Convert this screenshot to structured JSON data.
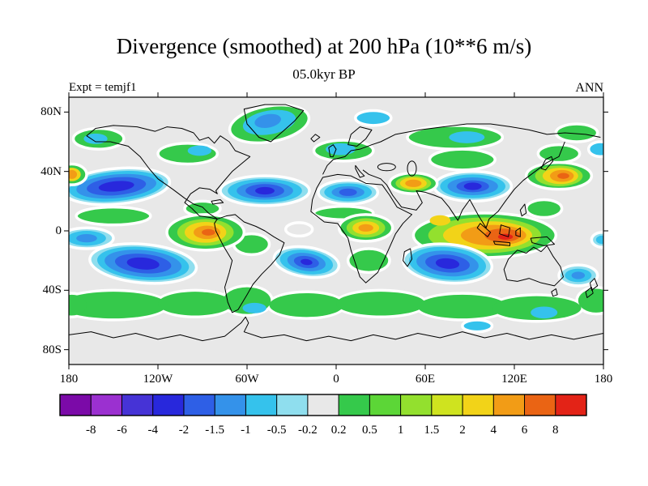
{
  "chart_data": {
    "type": "filled-contour-map",
    "title": "Divergence (smoothed) at 200 hPa (10**6 m/s)",
    "subtitle": "05.0kyr BP",
    "experiment_label": "Expt = temjf1",
    "season_label": "ANN",
    "units": "10**6 m/s",
    "projection": "equirectangular",
    "lon_range": [
      -180,
      180
    ],
    "lat_range": [
      -90,
      90
    ],
    "grid": false,
    "legend_position": "bottom-colorbar",
    "x_ticks": [
      {
        "label": "180",
        "lon": -180
      },
      {
        "label": "120W",
        "lon": -120
      },
      {
        "label": "60W",
        "lon": -60
      },
      {
        "label": "0",
        "lon": 0
      },
      {
        "label": "60E",
        "lon": 60
      },
      {
        "label": "120E",
        "lon": 120
      },
      {
        "label": "180",
        "lon": 180
      }
    ],
    "y_ticks": [
      {
        "label": "80N",
        "lat": 80
      },
      {
        "label": "40N",
        "lat": 40
      },
      {
        "label": "0",
        "lat": 0
      },
      {
        "label": "40S",
        "lat": -40
      },
      {
        "label": "80S",
        "lat": -80
      }
    ],
    "contour_levels": [
      -8,
      -6,
      -4,
      -2,
      -1.5,
      -1,
      -0.5,
      -0.2,
      0.2,
      0.5,
      1,
      1.5,
      2,
      4,
      6,
      8
    ],
    "palette": [
      "#7B0AA8",
      "#9B30D0",
      "#4633D6",
      "#2828DC",
      "#2E5FE6",
      "#3492EA",
      "#35C2EC",
      "#8FDEEE",
      "#E8E8E8",
      "#35C94B",
      "#5CD637",
      "#93E02E",
      "#CFE31F",
      "#F2D318",
      "#F29C16",
      "#EA6414",
      "#E32317"
    ],
    "neutral_color": "#E8E8E8",
    "contour_halo_color": "#FFFFFF",
    "features_format": [
      "lon",
      "lat",
      "rx_deg",
      "ry_deg",
      "rotation_deg",
      "palette_index",
      "white_halo"
    ],
    "features": [
      [
        -45,
        72,
        27,
        12,
        -10,
        9,
        1
      ],
      [
        -45,
        73,
        18,
        8,
        -10,
        6,
        0
      ],
      [
        -46,
        74,
        9,
        4.5,
        -10,
        5,
        0
      ],
      [
        -160,
        62,
        17,
        7,
        0,
        9,
        1
      ],
      [
        -162,
        62,
        8,
        3.5,
        0,
        6,
        0
      ],
      [
        80,
        63,
        32,
        8,
        0,
        9,
        1
      ],
      [
        88,
        63,
        12,
        4,
        0,
        6,
        0
      ],
      [
        162,
        66,
        14,
        6,
        0,
        9,
        1
      ],
      [
        25,
        76,
        12,
        5,
        0,
        6,
        1
      ],
      [
        5,
        54,
        20,
        7,
        0,
        9,
        1
      ],
      [
        3,
        55,
        10,
        4,
        0,
        6,
        0
      ],
      [
        -100,
        52,
        20,
        7,
        0,
        9,
        1
      ],
      [
        -92,
        54,
        8,
        3.5,
        0,
        6,
        0
      ],
      [
        85,
        48,
        22,
        7,
        0,
        9,
        1
      ],
      [
        150,
        52,
        14,
        6,
        0,
        9,
        1
      ],
      [
        178,
        55,
        8,
        5,
        0,
        6,
        1
      ],
      [
        -150,
        10,
        25,
        6,
        0,
        9,
        1
      ],
      [
        -90,
        15,
        12,
        5,
        0,
        9,
        1
      ],
      [
        5,
        12,
        20,
        4.5,
        0,
        9,
        1
      ],
      [
        140,
        15,
        12,
        6,
        0,
        9,
        1
      ],
      [
        -150,
        -50,
        36,
        9,
        0,
        9,
        2
      ],
      [
        -95,
        -49,
        25,
        8,
        0,
        9,
        2
      ],
      [
        -60,
        -47,
        16,
        9,
        0,
        9,
        2
      ],
      [
        -20,
        -50,
        25,
        8,
        0,
        9,
        2
      ],
      [
        30,
        -49,
        30,
        8,
        0,
        9,
        2
      ],
      [
        85,
        -51,
        30,
        8,
        0,
        9,
        2
      ],
      [
        135,
        -52,
        30,
        8,
        0,
        9,
        2
      ],
      [
        175,
        -47,
        12,
        8,
        0,
        9,
        2
      ],
      [
        -178,
        -50,
        10,
        7,
        0,
        9,
        2
      ],
      [
        -55,
        -52,
        8,
        3.5,
        0,
        6,
        0
      ],
      [
        140,
        -55,
        9,
        4,
        0,
        6,
        0
      ],
      [
        -57,
        -9,
        12,
        7,
        0,
        9,
        1
      ],
      [
        22,
        -20,
        14,
        8,
        0,
        9,
        1
      ],
      [
        -88,
        -1,
        26,
        12,
        0,
        9,
        1
      ],
      [
        -88,
        -1,
        19,
        9,
        0,
        11,
        0
      ],
      [
        -88,
        -1,
        14,
        7,
        0,
        13,
        0
      ],
      [
        -87,
        -1,
        9,
        4.5,
        0,
        14,
        0
      ],
      [
        -86,
        -1,
        4.5,
        2.2,
        0,
        15,
        0
      ],
      [
        20,
        2,
        18,
        9,
        0,
        9,
        1
      ],
      [
        20,
        2,
        13,
        6.5,
        0,
        11,
        0
      ],
      [
        20,
        2,
        9,
        4.5,
        0,
        13,
        0
      ],
      [
        20,
        2,
        5,
        2.5,
        0,
        14,
        0
      ],
      [
        100,
        -3,
        48,
        15,
        0,
        9,
        1
      ],
      [
        100,
        -3,
        38,
        12,
        0,
        11,
        0
      ],
      [
        102,
        -3,
        30,
        9.5,
        0,
        13,
        0
      ],
      [
        106,
        -3,
        22,
        7,
        0,
        14,
        0
      ],
      [
        112,
        -3,
        12,
        4.5,
        0,
        15,
        0
      ],
      [
        114,
        -4,
        5,
        2,
        0,
        16,
        0
      ],
      [
        70,
        7,
        7,
        3.5,
        0,
        13,
        0
      ],
      [
        -25,
        1,
        9,
        4.5,
        0,
        8,
        1
      ],
      [
        -148,
        30,
        36,
        12,
        -5,
        7,
        1
      ],
      [
        -148,
        30,
        32,
        10,
        -5,
        6,
        0
      ],
      [
        -148,
        30,
        27,
        8,
        -5,
        5,
        0
      ],
      [
        -148,
        30,
        20,
        6,
        -5,
        4,
        0
      ],
      [
        -148,
        30,
        12,
        3.5,
        -5,
        3,
        0
      ],
      [
        -48,
        27,
        30,
        10,
        0,
        7,
        1
      ],
      [
        -48,
        27,
        25,
        8,
        0,
        6,
        0
      ],
      [
        -48,
        27,
        19,
        6,
        0,
        5,
        0
      ],
      [
        -48,
        27,
        13,
        4.5,
        0,
        4,
        0
      ],
      [
        -48,
        27,
        6.5,
        2.5,
        0,
        3,
        0
      ],
      [
        8,
        26,
        20,
        8,
        0,
        7,
        1
      ],
      [
        8,
        26,
        16,
        6,
        0,
        6,
        0
      ],
      [
        8,
        26,
        11,
        4,
        0,
        5,
        0
      ],
      [
        8,
        26,
        6,
        2.5,
        0,
        4,
        0
      ],
      [
        92,
        30,
        26,
        10,
        0,
        7,
        1
      ],
      [
        92,
        30,
        22,
        8,
        0,
        6,
        0
      ],
      [
        92,
        30,
        17,
        6,
        0,
        5,
        0
      ],
      [
        92,
        30,
        11,
        4,
        0,
        4,
        0
      ],
      [
        92,
        30,
        6,
        2.5,
        0,
        3,
        0
      ],
      [
        150,
        37,
        22,
        9,
        0,
        9,
        1
      ],
      [
        150,
        37,
        16,
        7,
        0,
        11,
        0
      ],
      [
        151,
        37,
        12,
        5.5,
        0,
        13,
        0
      ],
      [
        152,
        37,
        8,
        4,
        0,
        14,
        0
      ],
      [
        153,
        37,
        4,
        2,
        0,
        15,
        0
      ],
      [
        -178,
        38,
        10,
        7,
        0,
        9,
        1
      ],
      [
        -178,
        38,
        6,
        4.5,
        0,
        13,
        0
      ],
      [
        -178,
        38,
        3.5,
        3,
        0,
        14,
        0
      ],
      [
        52,
        32,
        16,
        7,
        0,
        9,
        1
      ],
      [
        52,
        32,
        12,
        5,
        0,
        11,
        0
      ],
      [
        52,
        32,
        9,
        4,
        0,
        13,
        0
      ],
      [
        52,
        32,
        5.5,
        2.5,
        0,
        14,
        0
      ],
      [
        -168,
        -5,
        18,
        7,
        0,
        7,
        1
      ],
      [
        -168,
        -5,
        13,
        5,
        0,
        6,
        0
      ],
      [
        -168,
        -5,
        7,
        2.8,
        0,
        5,
        0
      ],
      [
        179,
        -6,
        7,
        5,
        0,
        7,
        1
      ],
      [
        179,
        -6,
        4,
        2.8,
        0,
        6,
        0
      ],
      [
        -130,
        -22,
        36,
        13,
        5,
        7,
        1
      ],
      [
        -130,
        -22,
        31,
        11,
        5,
        6,
        0
      ],
      [
        -130,
        -22,
        26,
        9,
        5,
        5,
        0
      ],
      [
        -130,
        -22,
        19,
        6.5,
        5,
        4,
        0
      ],
      [
        -130,
        -22,
        11,
        4,
        5,
        3,
        0
      ],
      [
        -20,
        -21,
        22,
        10,
        8,
        7,
        1
      ],
      [
        -20,
        -21,
        18,
        8,
        8,
        6,
        0
      ],
      [
        -20,
        -21,
        13,
        6,
        8,
        5,
        0
      ],
      [
        -20,
        -21,
        8.5,
        4,
        8,
        4,
        0
      ],
      [
        -20,
        -21,
        4,
        2,
        8,
        3,
        0
      ],
      [
        75,
        -22,
        30,
        13,
        5,
        7,
        1
      ],
      [
        75,
        -22,
        26,
        11,
        5,
        6,
        0
      ],
      [
        75,
        -22,
        21,
        8.5,
        5,
        5,
        0
      ],
      [
        75,
        -22,
        15,
        6,
        5,
        4,
        0
      ],
      [
        75,
        -22,
        8,
        3.5,
        5,
        3,
        0
      ],
      [
        163,
        -30,
        13,
        7,
        0,
        7,
        1
      ],
      [
        163,
        -30,
        9,
        4.5,
        0,
        6,
        0
      ],
      [
        163,
        -30,
        4.5,
        2.5,
        0,
        5,
        0
      ],
      [
        95,
        -64,
        10,
        4,
        0,
        6,
        1
      ]
    ]
  }
}
